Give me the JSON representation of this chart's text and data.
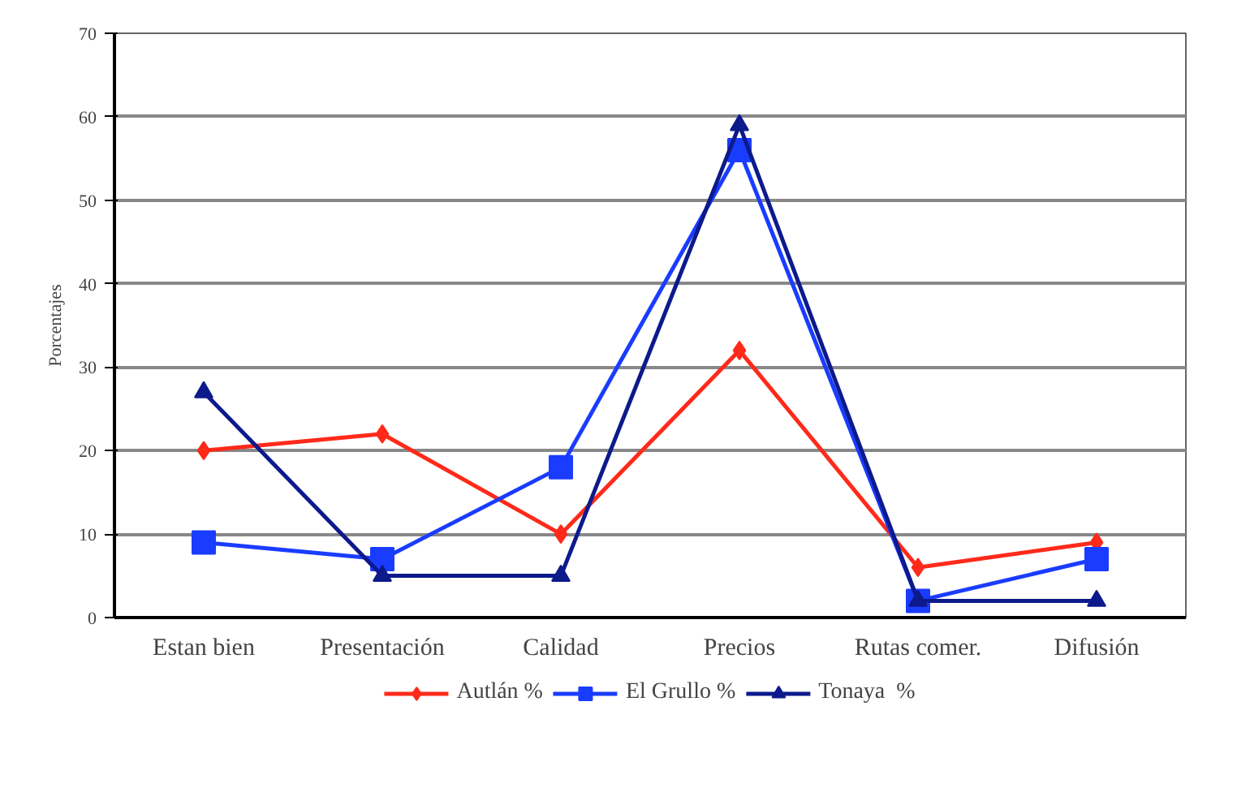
{
  "chart_data": {
    "type": "line",
    "ylabel": "Porcentajes",
    "categories": [
      "Estan bien",
      "Presentación",
      "Calidad",
      "Precios",
      "Rutas comer.",
      "Difusión"
    ],
    "series": [
      {
        "name": "Autlán %",
        "color": "#ff2a1a",
        "marker": "diamond",
        "values": [
          20,
          22,
          10,
          32,
          6,
          9
        ]
      },
      {
        "name": "El Grullo %",
        "color": "#1a3cff",
        "marker": "square",
        "values": [
          9,
          7,
          18,
          56,
          2,
          7
        ]
      },
      {
        "name": "Tonaya  %",
        "color": "#0d1a8c",
        "marker": "triangle",
        "values": [
          27,
          5,
          5,
          59,
          2,
          2
        ]
      }
    ],
    "ylim": [
      0,
      70
    ],
    "yticks": [
      0,
      10,
      20,
      30,
      40,
      50,
      60,
      70
    ],
    "grid": "y",
    "legend": "bottom",
    "line_style": "solid"
  }
}
